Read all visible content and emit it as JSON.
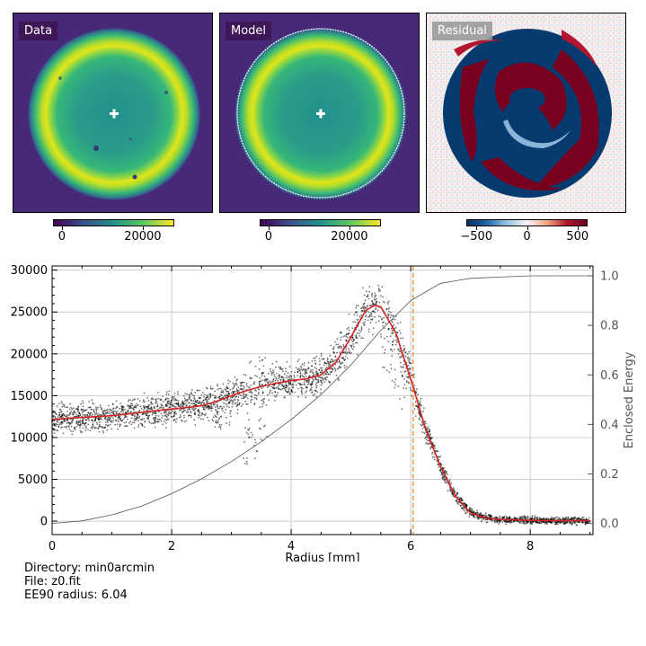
{
  "panels": [
    {
      "label": "Data",
      "colorbar": {
        "ticks": [
          "0",
          "20000"
        ],
        "tick_values": [
          0,
          20000
        ],
        "range": [
          -2200,
          27800
        ],
        "colormap": "viridis"
      }
    },
    {
      "label": "Model",
      "colorbar": {
        "ticks": [
          "0",
          "20000"
        ],
        "tick_values": [
          0,
          20000
        ],
        "range": [
          -2200,
          27800
        ],
        "colormap": "viridis"
      }
    },
    {
      "label": "Residual",
      "colorbar": {
        "ticks": [
          "−500",
          "0",
          "500"
        ],
        "tick_values": [
          -500,
          0,
          500
        ],
        "range": [
          -600,
          600
        ],
        "colormap": "RdBu_r"
      }
    }
  ],
  "info": {
    "directory": "Directory: min0arcmin",
    "file": "File: z0.fit",
    "ee90": "EE90 radius: 6.04"
  },
  "chart_data": {
    "type": "scatter",
    "xlabel": "Radius [mm]",
    "ylabel": "",
    "y2label": "Enclosed Energy",
    "xlim": [
      0,
      9.05
    ],
    "ylim": [
      -1600,
      30500
    ],
    "y2lim": [
      -0.045,
      1.04
    ],
    "xticks": [
      0,
      2,
      4,
      6,
      8
    ],
    "yticks": [
      0,
      5000,
      10000,
      15000,
      20000,
      25000,
      30000
    ],
    "y2ticks": [
      0.0,
      0.2,
      0.4,
      0.6,
      0.8,
      1.0
    ],
    "xtick_labels": [
      "0",
      "2",
      "4",
      "6",
      "8"
    ],
    "ytick_labels": [
      "0",
      "5000",
      "10000",
      "15000",
      "20000",
      "25000",
      "30000"
    ],
    "y2tick_labels": [
      "0.0",
      "0.2",
      "0.4",
      "0.6",
      "0.8",
      "1.0"
    ],
    "grid": true,
    "ee90_radius": 6.04,
    "ee90_line_color": "#ff7f0e",
    "profile_color": "#d62728",
    "series": [
      {
        "role": "profile",
        "x": [
          0,
          0.25,
          0.5,
          0.75,
          1.0,
          1.25,
          1.5,
          1.75,
          2.0,
          2.25,
          2.5,
          2.75,
          3.0,
          3.25,
          3.5,
          3.75,
          4.0,
          4.25,
          4.5,
          4.75,
          5.0,
          5.25,
          5.4,
          5.5,
          5.75,
          6.0,
          6.25,
          6.5,
          6.75,
          7.0,
          7.25,
          7.5,
          8.0,
          8.5,
          9.0
        ],
        "y": [
          12100,
          12300,
          12400,
          12500,
          12600,
          12800,
          13000,
          13200,
          13400,
          13600,
          13800,
          14300,
          15000,
          15600,
          16100,
          16500,
          16800,
          17000,
          17500,
          19000,
          22000,
          25200,
          25800,
          25600,
          22500,
          17000,
          11000,
          6500,
          3000,
          1000,
          400,
          200,
          100,
          50,
          50
        ]
      },
      {
        "role": "enclosed-energy",
        "x": [
          0,
          0.5,
          1.0,
          1.5,
          2.0,
          2.5,
          3.0,
          3.5,
          4.0,
          4.5,
          5.0,
          5.5,
          6.0,
          6.5,
          7.0,
          7.5,
          8.0,
          9.0
        ],
        "y": [
          0.0,
          0.01,
          0.035,
          0.07,
          0.12,
          0.18,
          0.25,
          0.33,
          0.42,
          0.52,
          0.64,
          0.78,
          0.9,
          0.97,
          0.99,
          0.995,
          1.0,
          1.0
        ]
      }
    ]
  }
}
